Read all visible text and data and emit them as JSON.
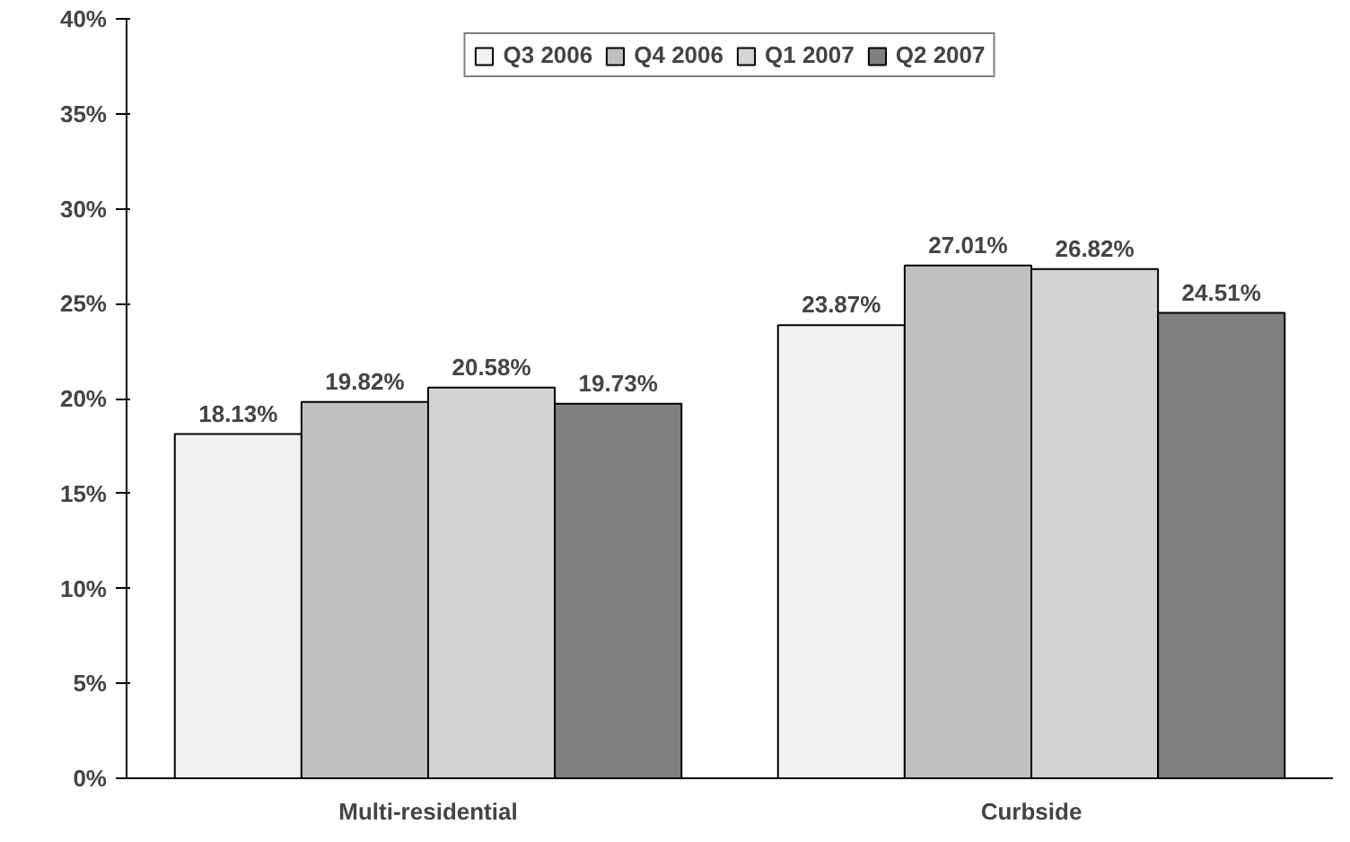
{
  "chart_data": {
    "type": "bar",
    "categories": [
      "Multi-residential",
      "Curbside"
    ],
    "series": [
      {
        "name": "Q3 2006",
        "color": "#f2f2f2",
        "values": [
          18.13,
          23.87
        ],
        "value_labels": [
          "18.13%",
          "23.87%"
        ]
      },
      {
        "name": "Q4 2006",
        "color": "#c0c0c0",
        "values": [
          19.82,
          27.01
        ],
        "value_labels": [
          "19.82%",
          "27.01%"
        ]
      },
      {
        "name": "Q1 2007",
        "color": "#d4d4d4",
        "values": [
          20.58,
          26.82
        ],
        "value_labels": [
          "20.58%",
          "26.82%"
        ]
      },
      {
        "name": "Q2 2007",
        "color": "#808080",
        "values": [
          19.73,
          24.51
        ],
        "value_labels": [
          "19.73%",
          "24.51%"
        ]
      }
    ],
    "ylim": [
      0,
      40
    ],
    "yticks": [
      {
        "value": 0,
        "label": "0%"
      },
      {
        "value": 5,
        "label": "5%"
      },
      {
        "value": 10,
        "label": "10%"
      },
      {
        "value": 15,
        "label": "15%"
      },
      {
        "value": 20,
        "label": "20%"
      },
      {
        "value": 25,
        "label": "25%"
      },
      {
        "value": 30,
        "label": "30%"
      },
      {
        "value": 35,
        "label": "35%"
      },
      {
        "value": 40,
        "label": "40%"
      }
    ],
    "grid": false,
    "legend": "top"
  }
}
